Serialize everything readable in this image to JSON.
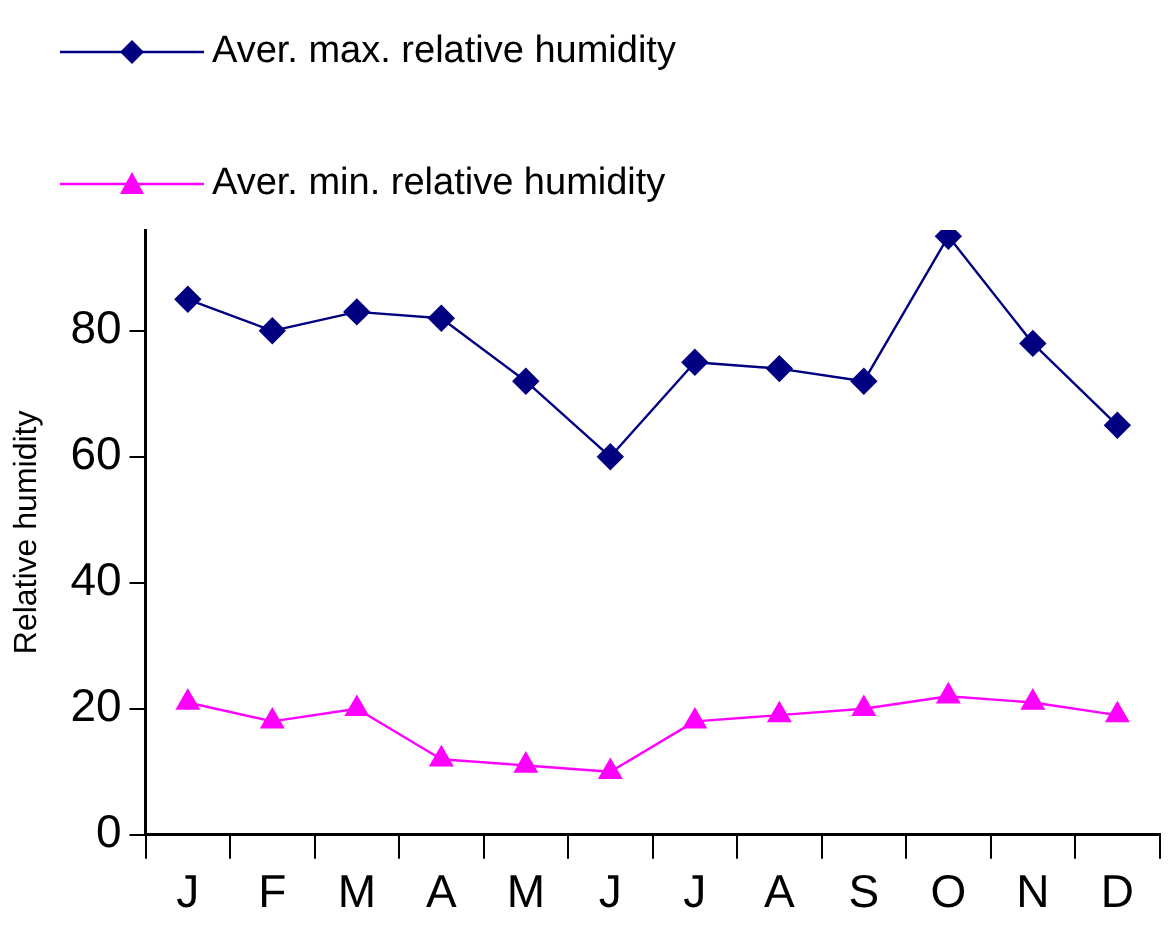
{
  "chart_data": {
    "type": "line",
    "ylabel": "Relative humidity",
    "categories": [
      "J",
      "F",
      "M",
      "A",
      "M",
      "J",
      "J",
      "A",
      "S",
      "O",
      "N",
      "D"
    ],
    "series": [
      {
        "name": "Aver. max. relative humidity",
        "color": "#000080",
        "marker": "diamond",
        "values": [
          85,
          80,
          83,
          82,
          72,
          60,
          75,
          74,
          72,
          95,
          78,
          65
        ]
      },
      {
        "name": "Aver. min. relative humidity",
        "color": "#ff00ff",
        "marker": "triangle",
        "values": [
          21,
          18,
          20,
          12,
          11,
          10,
          18,
          19,
          20,
          22,
          21,
          19
        ]
      }
    ],
    "ylim": [
      0,
      96
    ],
    "yticks": [
      0,
      20,
      40,
      60,
      80
    ],
    "grid": false,
    "legend": "top left"
  }
}
